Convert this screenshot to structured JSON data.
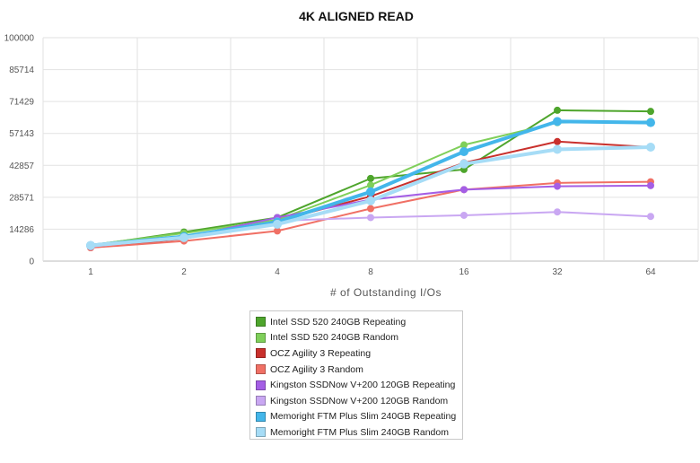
{
  "chart_data": {
    "type": "line",
    "title": "4K ALIGNED READ",
    "xlabel": "# of Outstanding I/Os",
    "ylabel": "",
    "categories": [
      "1",
      "2",
      "4",
      "8",
      "16",
      "32",
      "64"
    ],
    "ylim": [
      0,
      100000
    ],
    "yticks": [
      "0",
      "14286",
      "28571",
      "42857",
      "57143",
      "71429",
      "85714",
      "100000"
    ],
    "grid": true,
    "legend_position": "bottom",
    "series": [
      {
        "name": "Intel SSD 520 240GB Repeating",
        "color": "#4ea52c",
        "values": [
          7000,
          13000,
          19500,
          37000,
          41000,
          67500,
          67000
        ]
      },
      {
        "name": "Intel SSD 520 240GB Random",
        "color": "#7fcf5a",
        "values": [
          7200,
          12500,
          18500,
          34000,
          52000,
          62000,
          62500
        ]
      },
      {
        "name": "OCZ Agility 3 Repeating",
        "color": "#c9302c",
        "values": [
          6000,
          10000,
          18000,
          29000,
          44000,
          53500,
          51000
        ]
      },
      {
        "name": "OCZ Agility 3 Random",
        "color": "#f07065",
        "values": [
          6000,
          9000,
          13500,
          23500,
          32000,
          35000,
          35500
        ]
      },
      {
        "name": "Kingston SSDNow V+200 120GB Repeating",
        "color": "#a45ee5",
        "values": [
          6500,
          10500,
          19500,
          27500,
          32000,
          33500,
          33800
        ]
      },
      {
        "name": "Kingston SSDNow V+200 120GB Random",
        "color": "#c9a7f2",
        "values": [
          6500,
          10500,
          18000,
          19500,
          20500,
          22000,
          20000
        ]
      },
      {
        "name": "Memoright FTM Plus Slim 240GB Repeating",
        "color": "#43b6ea",
        "values": [
          7000,
          11000,
          17500,
          31000,
          49000,
          62500,
          62000
        ]
      },
      {
        "name": "Memoright FTM Plus Slim 240GB Random",
        "color": "#a6dcf6",
        "values": [
          7000,
          10500,
          16500,
          27000,
          43500,
          50000,
          51000
        ]
      }
    ]
  }
}
